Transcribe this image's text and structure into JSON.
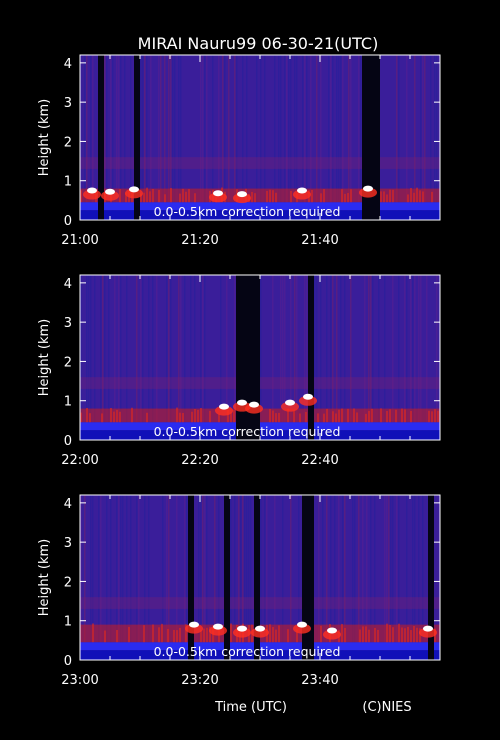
{
  "title": "MIRAI Nauru99 06-30-21(UTC)",
  "xlabel": "Time (UTC)",
  "credit": "(C)NIES",
  "colors": {
    "background": "#000000",
    "field": "#3a1e9a",
    "surface_band": "#2a2cf0",
    "boundary_layer": "#c81e1e",
    "cloud": "#ffffff",
    "dropout": "#050514"
  },
  "chart_data": [
    {
      "type": "heatmap",
      "ylabel": "Height (km)",
      "ylim": [
        0,
        4.2
      ],
      "yticks": [
        0,
        1,
        2,
        3,
        4
      ],
      "xlim": [
        "21:00",
        "22:00"
      ],
      "xtick_labels": [
        "21:00",
        "21:20",
        "21:40"
      ],
      "annotation": "0.0-0.5km correction required",
      "boundary_layer_top_km": 0.8,
      "dropouts": [
        [
          "21:03",
          "21:04"
        ],
        [
          "21:09",
          "21:10"
        ],
        [
          "21:47",
          "21:50"
        ]
      ],
      "cloud_events": [
        {
          "time": "21:02",
          "height_km": 0.75
        },
        {
          "time": "21:05",
          "height_km": 0.72
        },
        {
          "time": "21:09",
          "height_km": 0.78
        },
        {
          "time": "21:23",
          "height_km": 0.68
        },
        {
          "time": "21:27",
          "height_km": 0.66
        },
        {
          "time": "21:37",
          "height_km": 0.75
        },
        {
          "time": "21:48",
          "height_km": 0.8
        }
      ]
    },
    {
      "type": "heatmap",
      "ylabel": "Height (km)",
      "ylim": [
        0,
        4.2
      ],
      "yticks": [
        0,
        1,
        2,
        3,
        4
      ],
      "xlim": [
        "22:00",
        "23:00"
      ],
      "xtick_labels": [
        "22:00",
        "22:20",
        "22:40"
      ],
      "annotation": "0.0-0.5km correction required",
      "boundary_layer_top_km": 0.8,
      "dropouts": [
        [
          "22:26",
          "22:30"
        ],
        [
          "22:38",
          "22:39"
        ]
      ],
      "cloud_events": [
        {
          "time": "22:24",
          "height_km": 0.85
        },
        {
          "time": "22:27",
          "height_km": 0.95
        },
        {
          "time": "22:29",
          "height_km": 0.9
        },
        {
          "time": "22:35",
          "height_km": 0.95
        },
        {
          "time": "22:38",
          "height_km": 1.1
        }
      ]
    },
    {
      "type": "heatmap",
      "ylabel": "Height (km)",
      "ylim": [
        0,
        4.2
      ],
      "yticks": [
        0,
        1,
        2,
        3,
        4
      ],
      "xlim": [
        "23:00",
        "24:00"
      ],
      "xtick_labels": [
        "23:00",
        "23:20",
        "23:40"
      ],
      "annotation": "0.0-0.5km correction required",
      "boundary_layer_top_km": 0.9,
      "dropouts": [
        [
          "23:18",
          "23:19"
        ],
        [
          "23:24",
          "23:25"
        ],
        [
          "23:29",
          "23:30"
        ],
        [
          "23:37",
          "23:39"
        ],
        [
          "23:58",
          "23:59"
        ]
      ],
      "cloud_events": [
        {
          "time": "23:19",
          "height_km": 0.9
        },
        {
          "time": "23:23",
          "height_km": 0.85
        },
        {
          "time": "23:27",
          "height_km": 0.8
        },
        {
          "time": "23:30",
          "height_km": 0.8
        },
        {
          "time": "23:37",
          "height_km": 0.9
        },
        {
          "time": "23:42",
          "height_km": 0.75
        },
        {
          "time": "23:58",
          "height_km": 0.8
        }
      ]
    }
  ]
}
